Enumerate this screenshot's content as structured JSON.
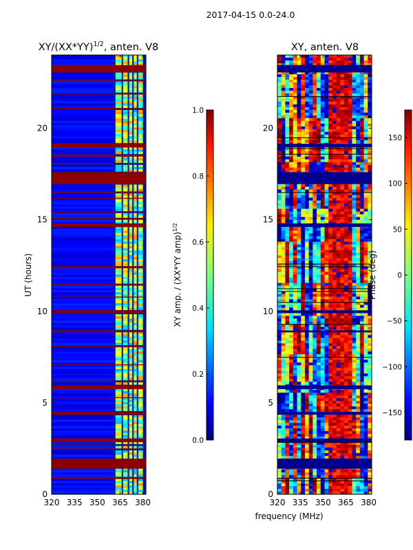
{
  "figure": {
    "suptitle": "2017-04-15 0.0-24.0",
    "xlabel": "frequency (MHz)"
  },
  "chart_data": [
    {
      "type": "heatmap",
      "title_main": "XY/(XX*YY)",
      "title_sup": "1/2",
      "title_tail": ", anten. V8",
      "ylabel": "UT (hours)",
      "xlim": [
        320,
        382
      ],
      "ylim": [
        0,
        24
      ],
      "xticks": [
        "320",
        "335",
        "350",
        "365",
        "380"
      ],
      "xtick_values": [
        320,
        335,
        350,
        365,
        380
      ],
      "yticks": [
        "0",
        "5",
        "10",
        "15",
        "20"
      ],
      "ytick_values": [
        0,
        5,
        10,
        15,
        20
      ],
      "colorbar": {
        "label_main": "XY amp. / (XX*YY amp)",
        "label_sup": "1/2",
        "range": [
          0.0,
          1.0
        ],
        "tick_values": [
          0.0,
          0.2,
          0.4,
          0.6,
          0.8,
          1.0
        ],
        "tick_labels": [
          "0.0",
          "0.2",
          "0.4",
          "0.6",
          "0.8",
          "1.0"
        ]
      },
      "flagged_hour_bands": [
        [
          0.85,
          0.95
        ],
        [
          1.4,
          1.95
        ],
        [
          2.45,
          2.5
        ],
        [
          2.65,
          2.7
        ],
        [
          2.85,
          3.05
        ],
        [
          4.35,
          4.5
        ],
        [
          5.25,
          5.3
        ],
        [
          5.75,
          5.95
        ],
        [
          6.15,
          6.2
        ],
        [
          7.05,
          7.1
        ],
        [
          8.05,
          8.1
        ],
        [
          8.85,
          8.95
        ],
        [
          9.9,
          10.05
        ],
        [
          10.75,
          10.8
        ],
        [
          11.45,
          11.5
        ],
        [
          12.35,
          12.45
        ],
        [
          14.6,
          14.8
        ],
        [
          15.05,
          15.1
        ],
        [
          15.4,
          15.45
        ],
        [
          16.15,
          16.2
        ],
        [
          16.45,
          16.5
        ],
        [
          16.95,
          17.6
        ],
        [
          18.05,
          18.1
        ],
        [
          18.45,
          18.55
        ],
        [
          18.95,
          19.15
        ],
        [
          21.05,
          21.1
        ],
        [
          21.85,
          21.9
        ],
        [
          22.6,
          22.65
        ],
        [
          23.05,
          23.45
        ]
      ],
      "bright_freq_bands_mhz": [
        [
          362,
          366
        ],
        [
          367,
          370
        ],
        [
          371,
          373
        ],
        [
          374,
          376
        ],
        [
          377,
          380
        ]
      ]
    },
    {
      "type": "heatmap",
      "title": "XY, anten. V8",
      "xlim": [
        320,
        382
      ],
      "ylim": [
        0,
        24
      ],
      "xticks": [
        "320",
        "335",
        "350",
        "365",
        "380"
      ],
      "xtick_values": [
        320,
        335,
        350,
        365,
        380
      ],
      "yticks": [
        "0",
        "5",
        "10",
        "15",
        "20"
      ],
      "ytick_values": [
        0,
        5,
        10,
        15,
        20
      ],
      "colorbar": {
        "label": "Phase (deg)",
        "range": [
          -180,
          180
        ],
        "tick_values": [
          -150,
          -100,
          -50,
          0,
          50,
          100,
          150
        ],
        "tick_labels": [
          "−150",
          "−100",
          "−50",
          "0",
          "50",
          "100",
          "150"
        ]
      },
      "flagged_hour_bands": [
        [
          1.4,
          1.95
        ],
        [
          2.85,
          3.05
        ],
        [
          4.35,
          4.5
        ],
        [
          5.75,
          5.95
        ],
        [
          8.85,
          8.95
        ],
        [
          9.9,
          10.05
        ],
        [
          14.6,
          14.8
        ],
        [
          16.95,
          17.6
        ],
        [
          18.95,
          19.15
        ],
        [
          23.05,
          23.45
        ]
      ]
    }
  ]
}
